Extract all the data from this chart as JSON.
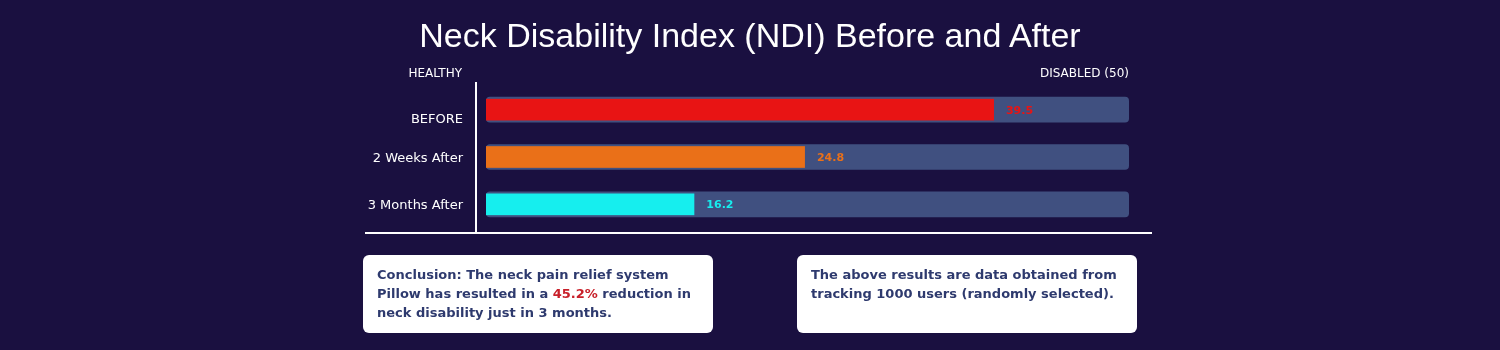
{
  "chart_data": {
    "type": "bar",
    "orientation": "horizontal",
    "title": "Neck Disability Index (NDI) Before and After",
    "categories": [
      "BEFORE",
      "2 Weeks After",
      "3 Months After"
    ],
    "values": [
      39.5,
      24.8,
      16.2
    ],
    "colors": [
      "#e81414",
      "#ea7018",
      "#16eeee"
    ],
    "data_labels": true,
    "xlim": [
      0,
      50
    ],
    "bands": [
      {
        "axis": "x",
        "from": 0,
        "to": 50,
        "color": "#405080"
      },
      {
        "axis": "x",
        "from": 0,
        "to": 50,
        "color": "#405080"
      },
      {
        "axis": "x",
        "from": 0,
        "to": 50,
        "color": "#405080"
      }
    ],
    "annotations": [
      "HEALTHY",
      "DISABLED (50)",
      "Conclusion: The neck pain relief system Pillow has resulted in a 45.2% reduction in neck disability just in 3 months.",
      "The above results are data obtained from tracking 1000 users (randomly selected)."
    ]
  }
}
